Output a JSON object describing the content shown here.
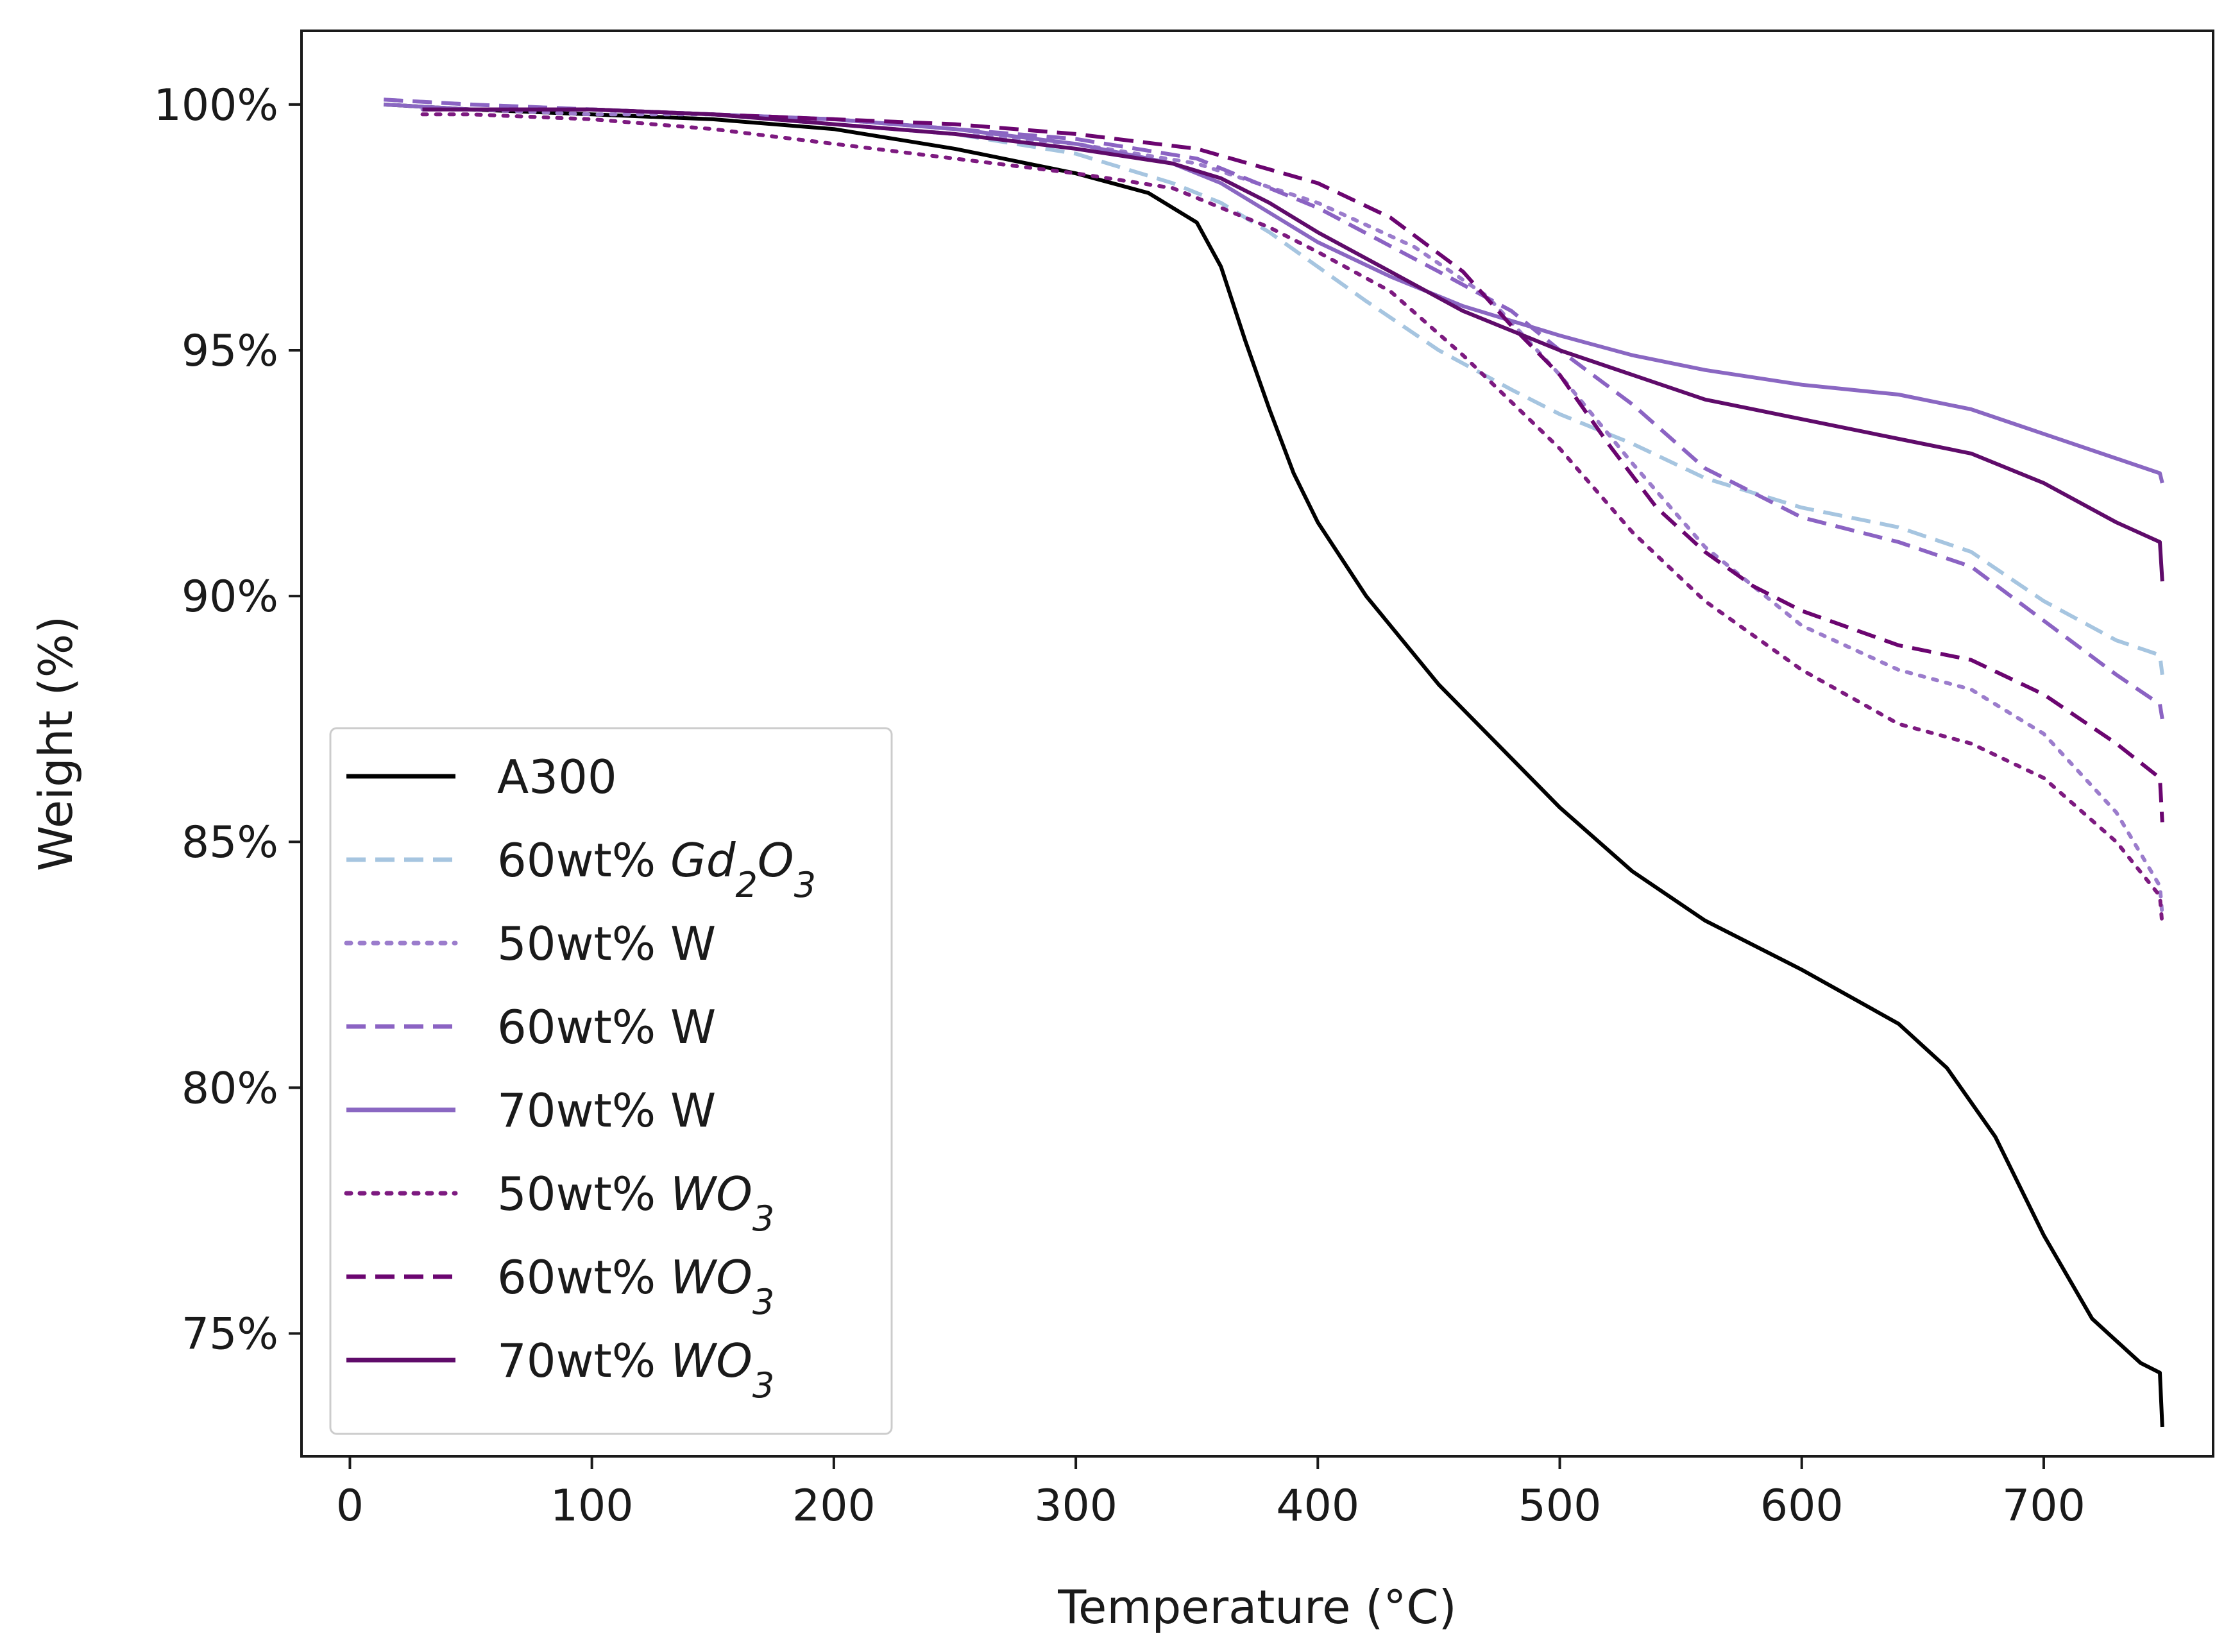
{
  "chart_data": {
    "type": "line",
    "title": "",
    "xlabel": "Temperature (°C)",
    "ylabel": "Weight (%)",
    "xlim": [
      -20,
      770
    ],
    "ylim": [
      72.5,
      101.5
    ],
    "xticks": [
      0,
      100,
      200,
      300,
      400,
      500,
      600,
      700
    ],
    "xtick_labels": [
      "0",
      "100",
      "200",
      "300",
      "400",
      "500",
      "600",
      "700"
    ],
    "yticks": [
      75,
      80,
      85,
      90,
      95,
      100
    ],
    "ytick_labels": [
      "75%",
      "80%",
      "85%",
      "90%",
      "95%",
      "100%"
    ],
    "legend_position": "lower-left",
    "series": [
      {
        "name": "A300",
        "label_parts": [
          {
            "text": "A300"
          }
        ],
        "color": "#000000",
        "style": "solid",
        "x": [
          14,
          50,
          100,
          150,
          200,
          250,
          300,
          330,
          350,
          360,
          370,
          380,
          390,
          400,
          420,
          450,
          480,
          500,
          530,
          560,
          600,
          640,
          660,
          680,
          700,
          720,
          740,
          748,
          749
        ],
        "y": [
          100.0,
          99.9,
          99.8,
          99.7,
          99.5,
          99.1,
          98.6,
          98.2,
          97.6,
          96.7,
          95.2,
          93.8,
          92.5,
          91.5,
          90.0,
          88.2,
          86.7,
          85.7,
          84.4,
          83.4,
          82.4,
          81.3,
          80.4,
          79.0,
          77.0,
          75.3,
          74.4,
          74.2,
          73.1
        ]
      },
      {
        "name": "60wt% Gd2O3",
        "label_parts": [
          {
            "text": "60wt% "
          },
          {
            "text": "Gd",
            "italic": true
          },
          {
            "text": "2",
            "sub": true,
            "italic": true
          },
          {
            "text": "O",
            "italic": true
          },
          {
            "text": "3",
            "sub": true,
            "italic": true
          }
        ],
        "color": "#a6c5e0",
        "style": "dashed",
        "x": [
          14,
          50,
          100,
          150,
          200,
          250,
          300,
          340,
          360,
          380,
          400,
          420,
          450,
          480,
          500,
          530,
          560,
          600,
          640,
          670,
          700,
          730,
          748,
          749
        ],
        "y": [
          100.1,
          100.0,
          99.9,
          99.8,
          99.6,
          99.4,
          99.0,
          98.4,
          98.0,
          97.4,
          96.7,
          96.0,
          95.0,
          94.2,
          93.7,
          93.1,
          92.4,
          91.8,
          91.4,
          90.9,
          89.9,
          89.1,
          88.8,
          88.4
        ]
      },
      {
        "name": "50wt% W",
        "label_parts": [
          {
            "text": "50wt% W"
          }
        ],
        "color": "#9b7ccc",
        "style": "dotted",
        "x": [
          30,
          50,
          100,
          150,
          200,
          250,
          300,
          350,
          400,
          440,
          470,
          500,
          530,
          560,
          600,
          640,
          670,
          700,
          730,
          748,
          749
        ],
        "y": [
          99.9,
          99.9,
          99.8,
          99.8,
          99.6,
          99.4,
          99.2,
          98.8,
          98.0,
          97.1,
          96.1,
          94.5,
          92.7,
          91.0,
          89.4,
          88.5,
          88.1,
          87.2,
          85.6,
          84.1,
          83.5
        ]
      },
      {
        "name": "60wt% W",
        "label_parts": [
          {
            "text": "60wt% W"
          }
        ],
        "color": "#8b63c3",
        "style": "dashed",
        "x": [
          14,
          50,
          100,
          150,
          200,
          250,
          300,
          350,
          400,
          450,
          480,
          500,
          530,
          560,
          600,
          640,
          670,
          700,
          730,
          748,
          749
        ],
        "y": [
          100.1,
          100.0,
          99.9,
          99.8,
          99.7,
          99.5,
          99.3,
          98.9,
          97.9,
          96.6,
          95.8,
          95.0,
          93.9,
          92.6,
          91.6,
          91.1,
          90.6,
          89.5,
          88.4,
          87.8,
          87.5
        ]
      },
      {
        "name": "70wt% W",
        "label_parts": [
          {
            "text": "70wt% W"
          }
        ],
        "color": "#8a67c2",
        "style": "solid",
        "x": [
          14,
          50,
          100,
          150,
          200,
          250,
          300,
          340,
          360,
          380,
          400,
          430,
          460,
          500,
          530,
          560,
          600,
          640,
          670,
          700,
          730,
          748,
          749
        ],
        "y": [
          100.0,
          99.9,
          99.9,
          99.8,
          99.7,
          99.5,
          99.2,
          98.8,
          98.4,
          97.8,
          97.2,
          96.5,
          95.9,
          95.3,
          94.9,
          94.6,
          94.3,
          94.1,
          93.8,
          93.3,
          92.8,
          92.5,
          92.3
        ]
      },
      {
        "name": "50wt% WO3",
        "label_parts": [
          {
            "text": "50wt% "
          },
          {
            "text": "WO",
            "italic": true
          },
          {
            "text": "3",
            "sub": true,
            "italic": true
          }
        ],
        "color": "#7d1a80",
        "style": "dotted",
        "x": [
          30,
          50,
          100,
          150,
          200,
          250,
          300,
          340,
          360,
          380,
          400,
          430,
          460,
          500,
          530,
          560,
          600,
          640,
          670,
          700,
          730,
          748,
          749
        ],
        "y": [
          99.8,
          99.8,
          99.7,
          99.5,
          99.2,
          98.9,
          98.6,
          98.3,
          97.9,
          97.5,
          97.0,
          96.2,
          94.9,
          93.0,
          91.3,
          89.9,
          88.5,
          87.4,
          87.0,
          86.3,
          85.0,
          83.9,
          83.3
        ]
      },
      {
        "name": "60wt% WO3",
        "label_parts": [
          {
            "text": "60wt% "
          },
          {
            "text": "WO",
            "italic": true
          },
          {
            "text": "3",
            "sub": true,
            "italic": true
          }
        ],
        "color": "#6b0570",
        "style": "dashed",
        "x": [
          30,
          50,
          100,
          150,
          200,
          250,
          300,
          350,
          400,
          430,
          460,
          480,
          500,
          520,
          540,
          560,
          580,
          600,
          640,
          670,
          700,
          730,
          748,
          749
        ],
        "y": [
          99.9,
          99.9,
          99.9,
          99.8,
          99.7,
          99.6,
          99.4,
          99.1,
          98.4,
          97.7,
          96.6,
          95.5,
          94.5,
          93.1,
          91.8,
          90.9,
          90.2,
          89.7,
          89.0,
          88.7,
          88.0,
          87.0,
          86.3,
          85.4
        ]
      },
      {
        "name": "70wt% WO3",
        "label_parts": [
          {
            "text": "70wt% "
          },
          {
            "text": "WO",
            "italic": true
          },
          {
            "text": "3",
            "sub": true,
            "italic": true
          }
        ],
        "color": "#5f0b6a",
        "style": "solid",
        "x": [
          30,
          50,
          100,
          150,
          200,
          250,
          300,
          340,
          360,
          380,
          400,
          430,
          460,
          500,
          530,
          560,
          600,
          640,
          670,
          700,
          730,
          748,
          749
        ],
        "y": [
          99.9,
          99.9,
          99.9,
          99.8,
          99.6,
          99.4,
          99.1,
          98.8,
          98.5,
          98.0,
          97.4,
          96.6,
          95.8,
          95.0,
          94.5,
          94.0,
          93.6,
          93.2,
          92.9,
          92.3,
          91.5,
          91.1,
          90.3
        ]
      }
    ]
  }
}
